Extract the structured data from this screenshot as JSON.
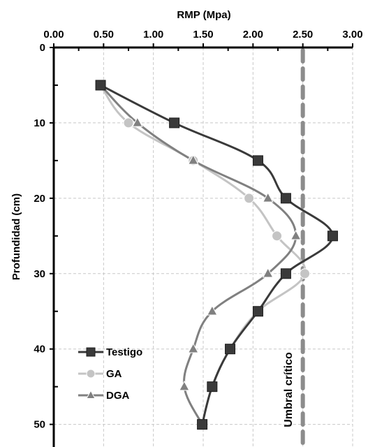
{
  "chart_data": {
    "type": "line",
    "title": "",
    "xlabel": "RMP (Mpa)",
    "ylabel": "Profundidad (cm)",
    "x_axis_position": "top",
    "y_axis_inverted": true,
    "xlim": [
      0,
      3
    ],
    "ylim": [
      0,
      53
    ],
    "x_ticks": [
      0,
      0.5,
      1,
      1.5,
      2,
      2.5,
      3
    ],
    "x_tick_labels": [
      "0.00",
      "0.50",
      "1.00",
      "1.50",
      "2.00",
      "2.50",
      "3.00"
    ],
    "y_ticks": [
      0,
      10,
      20,
      30,
      40,
      50
    ],
    "y_tick_labels": [
      "0",
      "10",
      "20",
      "30",
      "40",
      "50"
    ],
    "grid": true,
    "legend_position": "bottom-left",
    "series": [
      {
        "name": "Testigo",
        "marker": "square",
        "color": "#3a3a3a",
        "points": [
          {
            "x": 0.47,
            "y": 5
          },
          {
            "x": 1.21,
            "y": 10
          },
          {
            "x": 2.05,
            "y": 15
          },
          {
            "x": 2.33,
            "y": 20
          },
          {
            "x": 2.8,
            "y": 25
          },
          {
            "x": 2.33,
            "y": 30
          },
          {
            "x": 2.05,
            "y": 35
          },
          {
            "x": 1.77,
            "y": 40
          },
          {
            "x": 1.59,
            "y": 45
          },
          {
            "x": 1.49,
            "y": 50
          }
        ]
      },
      {
        "name": "GA",
        "marker": "circle",
        "color": "#c4c4c4",
        "points": [
          {
            "x": 0.47,
            "y": 5
          },
          {
            "x": 0.75,
            "y": 10
          },
          {
            "x": 1.4,
            "y": 15
          },
          {
            "x": 1.96,
            "y": 20
          },
          {
            "x": 2.24,
            "y": 25
          },
          {
            "x": 2.52,
            "y": 30
          },
          {
            "x": 2.05,
            "y": 35
          },
          {
            "x": 1.77,
            "y": 40
          },
          {
            "x": 1.59,
            "y": 45
          },
          {
            "x": 1.49,
            "y": 50
          }
        ]
      },
      {
        "name": "DGA",
        "marker": "triangle",
        "color": "#808080",
        "points": [
          {
            "x": 0.47,
            "y": 5
          },
          {
            "x": 0.84,
            "y": 10
          },
          {
            "x": 1.4,
            "y": 15
          },
          {
            "x": 2.15,
            "y": 20
          },
          {
            "x": 2.43,
            "y": 25
          },
          {
            "x": 2.15,
            "y": 30
          },
          {
            "x": 1.59,
            "y": 35
          },
          {
            "x": 1.4,
            "y": 40
          },
          {
            "x": 1.31,
            "y": 45
          },
          {
            "x": 1.49,
            "y": 50
          }
        ]
      }
    ],
    "threshold": {
      "label": "Umbral crítico",
      "x": 2.5,
      "style": "dashed",
      "color": "#8c8c8c"
    }
  }
}
